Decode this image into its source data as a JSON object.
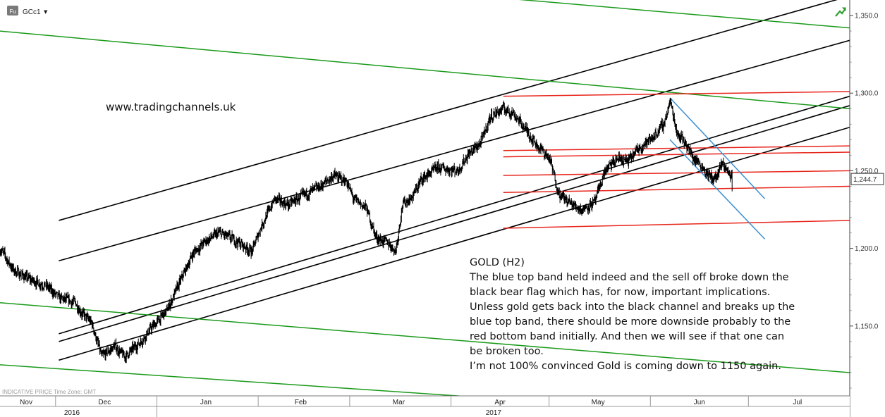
{
  "toolbar": {
    "badge": "Fu",
    "symbol": "GCc1",
    "dropdown_glyph": "▼",
    "status_icon": "trend-arrow-icon",
    "status_color": "#2e9e2e"
  },
  "indicative_note": "INDICATIVE PRICE   Time Zone: GMT",
  "watermark": "www.tradingchannels.uk",
  "commentary": {
    "title": "GOLD (H2)",
    "lines": [
      "The blue top band held indeed and the sell off broke down the",
      "black bear flag which has, for now, important implications.",
      "Unless gold gets back into the black channel and breaks up the",
      "blue top band, there should be more downside probably to the",
      "red bottom band initially. And then we will see if that one can",
      "be broken too.",
      "I’m not 100% convinced Gold is coming down to 1150 again."
    ]
  },
  "chart_data": {
    "type": "bar",
    "title": "GOLD (H2)",
    "symbol": "GCc1",
    "xlabel": "",
    "ylabel": "",
    "ylim": [
      1105,
      1360
    ],
    "y_ticks": [
      1150,
      1200,
      1250,
      1300,
      1350
    ],
    "y_tick_labels": [
      "1,150.0",
      "1,200.0",
      "1,250.0",
      "1,300.0",
      "1,350.0"
    ],
    "last_price": 1244.7,
    "last_price_label": "1,244.7",
    "x_month_labels": [
      "Nov",
      "Dec",
      "Jan",
      "Feb",
      "Mar",
      "Apr",
      "May",
      "Jun",
      "Jul"
    ],
    "x_month_centers": [
      "2016-11-22",
      "2016-12-16",
      "2017-01-16",
      "2017-02-14",
      "2017-03-16",
      "2017-04-16",
      "2017-05-16",
      "2017-06-16",
      "2017-07-16"
    ],
    "x_month_dividers": [
      "2016-12-01",
      "2017-01-01",
      "2017-02-01",
      "2017-03-01",
      "2017-04-01",
      "2017-05-01",
      "2017-06-01",
      "2017-07-01",
      "2017-08-01"
    ],
    "x_year_labels": [
      {
        "label": "2016",
        "center": "2016-12-06"
      },
      {
        "label": "2017",
        "center": "2017-04-14"
      }
    ],
    "year_divider": "2017-01-01",
    "x_range": [
      "2016-11-14",
      "2017-08-01"
    ],
    "price_path": [
      [
        "2016-11-14",
        1200
      ],
      [
        "2016-11-18",
        1186
      ],
      [
        "2016-11-23",
        1180
      ],
      [
        "2016-11-28",
        1176
      ],
      [
        "2016-12-02",
        1168
      ],
      [
        "2016-12-07",
        1165
      ],
      [
        "2016-12-09",
        1158
      ],
      [
        "2016-12-12",
        1152
      ],
      [
        "2016-12-15",
        1130
      ],
      [
        "2016-12-19",
        1137
      ],
      [
        "2016-12-22",
        1130
      ],
      [
        "2016-12-27",
        1140
      ],
      [
        "2016-12-30",
        1148
      ],
      [
        "2017-01-04",
        1160
      ],
      [
        "2017-01-09",
        1183
      ],
      [
        "2017-01-12",
        1197
      ],
      [
        "2017-01-16",
        1205
      ],
      [
        "2017-01-20",
        1210
      ],
      [
        "2017-01-25",
        1205
      ],
      [
        "2017-01-30",
        1198
      ],
      [
        "2017-02-02",
        1215
      ],
      [
        "2017-02-06",
        1232
      ],
      [
        "2017-02-10",
        1228
      ],
      [
        "2017-02-14",
        1233
      ],
      [
        "2017-02-20",
        1240
      ],
      [
        "2017-02-24",
        1247
      ],
      [
        "2017-02-28",
        1243
      ],
      [
        "2017-03-02",
        1232
      ],
      [
        "2017-03-06",
        1226
      ],
      [
        "2017-03-09",
        1207
      ],
      [
        "2017-03-13",
        1203
      ],
      [
        "2017-03-15",
        1198
      ],
      [
        "2017-03-17",
        1228
      ],
      [
        "2017-03-20",
        1233
      ],
      [
        "2017-03-23",
        1245
      ],
      [
        "2017-03-28",
        1252
      ],
      [
        "2017-04-03",
        1250
      ],
      [
        "2017-04-06",
        1260
      ],
      [
        "2017-04-10",
        1268
      ],
      [
        "2017-04-13",
        1285
      ],
      [
        "2017-04-17",
        1290
      ],
      [
        "2017-04-20",
        1287
      ],
      [
        "2017-04-24",
        1276
      ],
      [
        "2017-04-27",
        1267
      ],
      [
        "2017-05-01",
        1258
      ],
      [
        "2017-05-04",
        1235
      ],
      [
        "2017-05-08",
        1228
      ],
      [
        "2017-05-11",
        1225
      ],
      [
        "2017-05-15",
        1230
      ],
      [
        "2017-05-18",
        1250
      ],
      [
        "2017-05-22",
        1258
      ],
      [
        "2017-05-25",
        1256
      ],
      [
        "2017-05-29",
        1266
      ],
      [
        "2017-06-01",
        1270
      ],
      [
        "2017-06-05",
        1280
      ],
      [
        "2017-06-07",
        1295
      ],
      [
        "2017-06-09",
        1275
      ],
      [
        "2017-06-12",
        1267
      ],
      [
        "2017-06-14",
        1258
      ],
      [
        "2017-06-16",
        1255
      ],
      [
        "2017-06-19",
        1246
      ],
      [
        "2017-06-21",
        1245
      ],
      [
        "2017-06-23",
        1255
      ],
      [
        "2017-06-26",
        1244.7
      ]
    ],
    "channel_lines": [
      {
        "color": "black",
        "from": [
          "2016-12-02",
          1218
        ],
        "to": [
          "2017-07-31",
          1362
        ]
      },
      {
        "color": "black",
        "from": [
          "2016-12-02",
          1192
        ],
        "to": [
          "2017-08-01",
          1334
        ]
      },
      {
        "color": "black",
        "from": [
          "2016-12-02",
          1145
        ],
        "to": [
          "2017-08-01",
          1298
        ]
      },
      {
        "color": "black",
        "from": [
          "2016-12-02",
          1140
        ],
        "to": [
          "2017-08-01",
          1292
        ]
      },
      {
        "color": "black",
        "from": [
          "2016-12-02",
          1128
        ],
        "to": [
          "2017-08-01",
          1278
        ]
      },
      {
        "color": "green",
        "from": [
          "2016-11-14",
          1340
        ],
        "to": [
          "2017-08-01",
          1290
        ]
      },
      {
        "color": "green",
        "from": [
          "2017-03-27",
          1365
        ],
        "to": [
          "2017-08-01",
          1342
        ]
      },
      {
        "color": "green",
        "from": [
          "2016-11-14",
          1165
        ],
        "to": [
          "2017-08-01",
          1120
        ]
      },
      {
        "color": "green",
        "from": [
          "2016-11-14",
          1125
        ],
        "to": [
          "2017-04-17",
          1103
        ]
      },
      {
        "color": "red",
        "from": [
          "2017-04-17",
          1298
        ],
        "to": [
          "2017-08-01",
          1301
        ]
      },
      {
        "color": "red",
        "from": [
          "2017-04-17",
          1263
        ],
        "to": [
          "2017-08-01",
          1266
        ]
      },
      {
        "color": "red",
        "from": [
          "2017-04-17",
          1259
        ],
        "to": [
          "2017-08-01",
          1262
        ]
      },
      {
        "color": "red",
        "from": [
          "2017-04-17",
          1247
        ],
        "to": [
          "2017-08-01",
          1250
        ]
      },
      {
        "color": "red",
        "from": [
          "2017-04-17",
          1236
        ],
        "to": [
          "2017-08-01",
          1240
        ]
      },
      {
        "color": "red",
        "from": [
          "2017-04-17",
          1213
        ],
        "to": [
          "2017-08-01",
          1218
        ]
      },
      {
        "color": "blue",
        "from": [
          "2017-06-07",
          1297
        ],
        "to": [
          "2017-07-06",
          1232
        ]
      },
      {
        "color": "blue",
        "from": [
          "2017-06-07",
          1270
        ],
        "to": [
          "2017-07-06",
          1206
        ]
      }
    ],
    "grid": false,
    "legend": "none"
  },
  "colors": {
    "black_line": "#000000",
    "green_line": "#1a9a1a",
    "red_line": "#e8251b",
    "blue_line": "#3d8fd1",
    "price": "#000000",
    "axis": "#777777"
  }
}
